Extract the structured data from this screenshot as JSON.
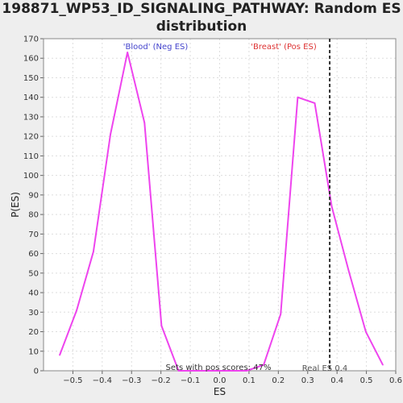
{
  "header": {
    "title_line1": "198871_WP53_ID_SIGNALING_PATHWAY: Random ES",
    "title_line2": "distribution"
  },
  "chart_data": {
    "type": "line",
    "title": "198871_WP53_ID_SIGNALING_PATHWAY: Random ES distribution",
    "xlabel": "ES",
    "ylabel": "P(ES)",
    "xlim": [
      -0.6,
      0.6
    ],
    "ylim": [
      0,
      170
    ],
    "x_ticks": [
      -0.5,
      -0.4,
      -0.3,
      -0.2,
      -0.1,
      0.0,
      0.1,
      0.2,
      0.3,
      0.4,
      0.5,
      0.6
    ],
    "x_tick_labels": [
      "−0.5",
      "−0.4",
      "−0.3",
      "−0.2",
      "−0.1",
      "0.0",
      "0.1",
      "0.2",
      "0.3",
      "0.4",
      "0.5",
      "0.6"
    ],
    "y_ticks": [
      0,
      10,
      20,
      30,
      40,
      50,
      60,
      70,
      80,
      90,
      100,
      110,
      120,
      130,
      140,
      150,
      160,
      170
    ],
    "grid": true,
    "series": [
      {
        "color": "#ee44ee",
        "x": [
          -0.545,
          -0.487,
          -0.43,
          -0.372,
          -0.314,
          -0.256,
          -0.198,
          -0.14,
          -0.082,
          -0.024,
          0.034,
          0.092,
          0.15,
          0.208,
          0.266,
          0.324,
          0.382,
          0.44,
          0.498,
          0.556
        ],
        "y": [
          8,
          31,
          61,
          121,
          163,
          127,
          23,
          0,
          0,
          0,
          0,
          0,
          3,
          29,
          140,
          137,
          84,
          51,
          20,
          3
        ]
      }
    ],
    "real_es": 0.375,
    "annotations": {
      "neg_label": "'Blood' (Neg ES)",
      "neg_color": "#4444cc",
      "pos_label": "'Breast' (Pos ES)",
      "pos_color": "#dd3333",
      "pos_scores": "Sets with pos scores: 47%",
      "real_es_label": "Real ES 0.4"
    }
  }
}
